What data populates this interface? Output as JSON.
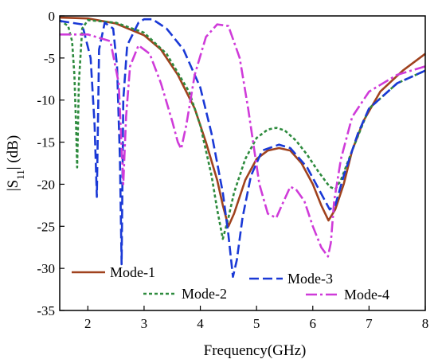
{
  "chart_data": {
    "type": "line",
    "xlabel": "Frequency(GHz)",
    "ylabel": "|S11| (dB)",
    "xlim": [
      1.5,
      8
    ],
    "ylim": [
      -35,
      0
    ],
    "xticks": [
      2,
      3,
      4,
      5,
      6,
      7,
      8
    ],
    "yticks": [
      0,
      -5,
      -10,
      -15,
      -20,
      -25,
      -30,
      -35
    ],
    "xtick_labels": [
      "2",
      "3",
      "4",
      "5",
      "6",
      "7",
      "8"
    ],
    "ytick_labels": [
      "0",
      "-5",
      "-10",
      "-15",
      "-20",
      "-25",
      "-30",
      "-35"
    ],
    "grid": false,
    "legend_position": "bottom",
    "series": [
      {
        "name": "Mode-1",
        "color": "#a0421e",
        "dash": "solid",
        "x": [
          1.5,
          2.0,
          2.5,
          3.0,
          3.3,
          3.6,
          3.9,
          4.1,
          4.3,
          4.4,
          4.5,
          4.6,
          4.8,
          5.0,
          5.2,
          5.4,
          5.6,
          5.8,
          6.0,
          6.15,
          6.28,
          6.4,
          6.55,
          6.7,
          6.9,
          7.2,
          7.6,
          8.0
        ],
        "y": [
          -0.2,
          -0.3,
          -0.9,
          -2.3,
          -4.0,
          -7.0,
          -11.0,
          -15.0,
          -19.5,
          -22.5,
          -25.0,
          -23.5,
          -19.5,
          -17.0,
          -16.0,
          -15.7,
          -16.0,
          -17.5,
          -20.0,
          -22.5,
          -24.3,
          -23.0,
          -20.0,
          -16.0,
          -12.5,
          -9.0,
          -6.5,
          -4.5
        ]
      },
      {
        "name": "Mode-2",
        "color": "#2e8b3e",
        "dash": "4,3",
        "x": [
          1.5,
          1.65,
          1.72,
          1.76,
          1.79,
          1.81,
          1.84,
          1.9,
          2.0,
          2.5,
          3.0,
          3.4,
          3.8,
          4.0,
          4.2,
          4.3,
          4.4,
          4.5,
          4.6,
          4.8,
          5.0,
          5.2,
          5.35,
          5.5,
          5.7,
          5.9,
          6.1,
          6.3,
          6.4,
          6.5,
          6.7,
          7.0,
          7.5,
          8.0
        ],
        "y": [
          -0.5,
          -1.2,
          -3.0,
          -7.0,
          -13.0,
          -18.0,
          -8.0,
          -1.5,
          -0.5,
          -0.8,
          -2.0,
          -4.5,
          -9.0,
          -13.0,
          -19.0,
          -23.0,
          -26.5,
          -24.0,
          -21.0,
          -17.0,
          -14.5,
          -13.5,
          -13.3,
          -13.6,
          -14.8,
          -16.5,
          -18.5,
          -20.3,
          -20.6,
          -19.5,
          -16.0,
          -11.0,
          -8.0,
          -6.5
        ]
      },
      {
        "name": "Mode-3",
        "color": "#1a39d6",
        "dash": "12,5",
        "x": [
          1.5,
          1.9,
          2.05,
          2.12,
          2.16,
          2.2,
          2.3,
          2.45,
          2.52,
          2.57,
          2.6,
          2.63,
          2.7,
          2.9,
          3.0,
          3.15,
          3.4,
          3.7,
          4.0,
          4.2,
          4.4,
          4.5,
          4.58,
          4.65,
          4.75,
          4.9,
          5.1,
          5.4,
          5.6,
          5.9,
          6.1,
          6.3,
          6.4,
          6.55,
          6.8,
          7.0,
          7.5,
          8.0
        ],
        "y": [
          -0.6,
          -1.0,
          -5.0,
          -13.0,
          -21.5,
          -4.0,
          -0.8,
          -1.5,
          -6.0,
          -17.0,
          -29.5,
          -10.0,
          -3.5,
          -0.8,
          -0.4,
          -0.4,
          -1.5,
          -4.0,
          -8.5,
          -14.0,
          -21.0,
          -26.0,
          -31.0,
          -29.0,
          -24.0,
          -19.0,
          -16.0,
          -15.3,
          -15.7,
          -18.0,
          -20.5,
          -23.0,
          -22.5,
          -19.0,
          -14.0,
          -11.0,
          -8.0,
          -6.5
        ]
      },
      {
        "name": "Mode-4",
        "color": "#cf3bd9",
        "dash": "14,4,3,4",
        "x": [
          1.5,
          2.0,
          2.4,
          2.55,
          2.63,
          2.68,
          2.75,
          2.9,
          3.1,
          3.3,
          3.5,
          3.6,
          3.66,
          3.75,
          3.9,
          4.1,
          4.3,
          4.5,
          4.7,
          4.85,
          4.95,
          5.05,
          5.2,
          5.35,
          5.45,
          5.6,
          5.7,
          5.85,
          6.0,
          6.15,
          6.27,
          6.32,
          6.38,
          6.5,
          6.7,
          7.0,
          7.5,
          8.0
        ],
        "y": [
          -2.2,
          -2.2,
          -3.0,
          -8.0,
          -20.0,
          -12.0,
          -6.0,
          -3.5,
          -4.5,
          -8.0,
          -12.5,
          -15.0,
          -15.8,
          -13.0,
          -7.0,
          -2.5,
          -1.0,
          -1.2,
          -5.0,
          -11.0,
          -15.5,
          -20.0,
          -23.5,
          -24.0,
          -22.5,
          -20.3,
          -20.6,
          -22.0,
          -25.0,
          -27.5,
          -28.6,
          -27.0,
          -22.0,
          -17.0,
          -12.0,
          -9.0,
          -7.0,
          -6.0
        ]
      }
    ]
  }
}
